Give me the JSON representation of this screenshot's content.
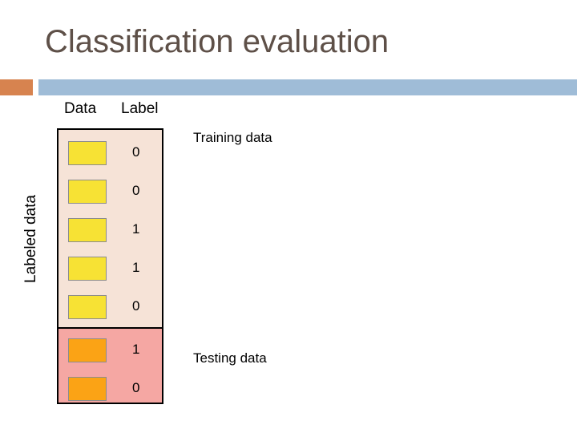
{
  "title": "Classification evaluation",
  "headers": {
    "data": "Data",
    "label": "Label"
  },
  "side_label": "Labeled data",
  "rows": [
    {
      "label": "0",
      "set": "train"
    },
    {
      "label": "0",
      "set": "train"
    },
    {
      "label": "1",
      "set": "train"
    },
    {
      "label": "1",
      "set": "train"
    },
    {
      "label": "0",
      "set": "train"
    },
    {
      "label": "1",
      "set": "test"
    },
    {
      "label": "0",
      "set": "test"
    }
  ],
  "annotations": {
    "training": "Training data",
    "testing": "Testing data"
  },
  "colors": {
    "title": "#5e5048",
    "accent_orange": "#d7834f",
    "accent_blue": "#9fbcd7",
    "training_bg": "#f6e3d7",
    "testing_bg": "#f5a7a3",
    "training_swatch": "#f7e234",
    "testing_swatch": "#fba315"
  }
}
